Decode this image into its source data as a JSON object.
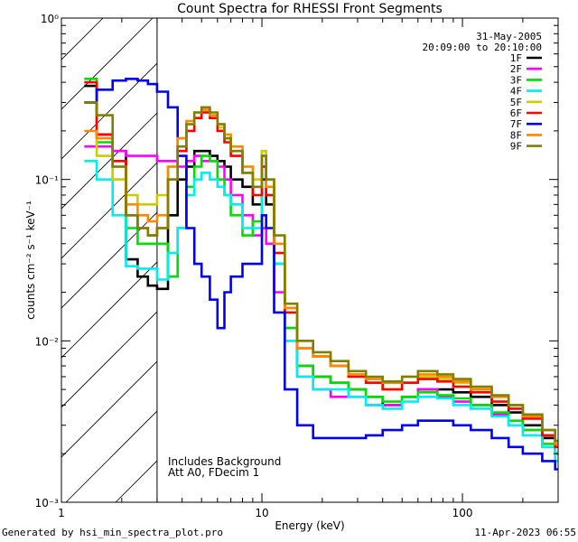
{
  "chart_data": {
    "type": "line",
    "title": "Count Spectra for RHESSI Front Segments",
    "xlabel": "Energy (keV)",
    "ylabel": "counts cm⁻² s⁻¹ keV⁻¹",
    "xscale": "log",
    "yscale": "log",
    "xlim": [
      1,
      300
    ],
    "ylim": [
      0.001,
      1
    ],
    "xticks": [
      {
        "value": 1,
        "label": "1"
      },
      {
        "value": 10,
        "label": "10"
      },
      {
        "value": 100,
        "label": "100"
      }
    ],
    "yticks": [
      {
        "value": 0.001,
        "label": "10⁻³"
      },
      {
        "value": 0.01,
        "label": "10⁻²"
      },
      {
        "value": 0.1,
        "label": "10⁻¹"
      },
      {
        "value": 1,
        "label": "10⁰"
      }
    ],
    "date_label": "31-May-2005",
    "time_label": "20:09:00 to 20:10:00",
    "annotations": [
      "Includes Background",
      "Att A0, FDecim 1"
    ],
    "shaded_region": {
      "x_from": 1,
      "x_to": 3
    },
    "series": [
      {
        "name": "1F",
        "color": "#000000",
        "x": [
          1.3,
          1.5,
          1.8,
          2.1,
          2.4,
          2.7,
          3.0,
          3.4,
          3.8,
          4.2,
          4.6,
          5.0,
          5.5,
          6.0,
          6.5,
          7.0,
          8.0,
          9.0,
          10.0,
          10.5,
          11.5,
          13,
          15,
          18,
          22,
          27,
          33,
          40,
          50,
          60,
          75,
          90,
          110,
          140,
          170,
          200,
          250,
          290
        ],
        "y": [
          0.38,
          0.19,
          0.15,
          0.032,
          0.025,
          0.022,
          0.021,
          0.06,
          0.1,
          0.12,
          0.15,
          0.15,
          0.14,
          0.13,
          0.12,
          0.1,
          0.09,
          0.07,
          0.1,
          0.07,
          0.03,
          0.012,
          0.007,
          0.006,
          0.0055,
          0.005,
          0.0045,
          0.004,
          0.0045,
          0.005,
          0.005,
          0.0048,
          0.0045,
          0.004,
          0.0036,
          0.003,
          0.0025,
          0.002
        ]
      },
      {
        "name": "2F",
        "color": "#ff00ff",
        "x": [
          1.3,
          1.5,
          1.8,
          2.1,
          2.4,
          2.7,
          3.0,
          3.4,
          3.8,
          4.2,
          4.6,
          5.0,
          5.5,
          6.0,
          6.5,
          7.0,
          8.0,
          9.0,
          10.0,
          10.5,
          11.5,
          13,
          15,
          18,
          22,
          27,
          33,
          40,
          50,
          60,
          75,
          90,
          110,
          140,
          170,
          200,
          250,
          290
        ],
        "y": [
          0.16,
          0.16,
          0.15,
          0.14,
          0.14,
          0.14,
          0.13,
          0.13,
          0.12,
          0.13,
          0.14,
          0.13,
          0.13,
          0.12,
          0.1,
          0.08,
          0.06,
          0.045,
          0.05,
          0.04,
          0.02,
          0.01,
          0.006,
          0.005,
          0.0045,
          0.0045,
          0.004,
          0.004,
          0.0045,
          0.005,
          0.0045,
          0.0042,
          0.004,
          0.0035,
          0.003,
          0.0028,
          0.0022,
          0.002
        ]
      },
      {
        "name": "3F",
        "color": "#00dd00",
        "x": [
          1.3,
          1.5,
          1.8,
          2.1,
          2.4,
          2.7,
          3.0,
          3.4,
          3.8,
          4.2,
          4.6,
          5.0,
          5.5,
          6.0,
          6.5,
          7.0,
          8.0,
          9.0,
          10.0,
          10.5,
          11.5,
          13,
          15,
          18,
          22,
          27,
          33,
          40,
          50,
          60,
          75,
          90,
          110,
          140,
          170,
          200,
          250,
          290
        ],
        "y": [
          0.42,
          0.17,
          0.1,
          0.05,
          0.04,
          0.04,
          0.04,
          0.025,
          0.05,
          0.09,
          0.12,
          0.14,
          0.13,
          0.1,
          0.08,
          0.06,
          0.045,
          0.055,
          0.12,
          0.08,
          0.03,
          0.012,
          0.007,
          0.006,
          0.0055,
          0.005,
          0.0045,
          0.0042,
          0.0045,
          0.0048,
          0.0046,
          0.0044,
          0.004,
          0.0036,
          0.0032,
          0.0028,
          0.0023,
          0.002
        ]
      },
      {
        "name": "4F",
        "color": "#00eeee",
        "x": [
          1.3,
          1.5,
          1.8,
          2.1,
          2.4,
          2.7,
          3.0,
          3.4,
          3.8,
          4.2,
          4.6,
          5.0,
          5.5,
          6.0,
          6.5,
          7.0,
          8.0,
          9.0,
          10.0,
          10.5,
          11.5,
          13,
          15,
          18,
          22,
          27,
          33,
          40,
          50,
          60,
          75,
          90,
          110,
          140,
          170,
          200,
          250,
          290
        ],
        "y": [
          0.13,
          0.1,
          0.06,
          0.029,
          0.028,
          0.028,
          0.024,
          0.035,
          0.05,
          0.08,
          0.1,
          0.11,
          0.1,
          0.09,
          0.08,
          0.07,
          0.05,
          0.05,
          0.15,
          0.08,
          0.03,
          0.01,
          0.006,
          0.005,
          0.005,
          0.0045,
          0.004,
          0.0038,
          0.0042,
          0.0045,
          0.0044,
          0.004,
          0.0038,
          0.0034,
          0.003,
          0.0026,
          0.0022,
          0.0018
        ]
      },
      {
        "name": "5F",
        "color": "#cccc00",
        "x": [
          1.3,
          1.5,
          1.8,
          2.1,
          2.4,
          2.7,
          3.0,
          3.4,
          3.8,
          4.2,
          4.6,
          5.0,
          5.5,
          6.0,
          6.5,
          7.0,
          8.0,
          9.0,
          10.0,
          10.5,
          11.5,
          13,
          15,
          18,
          22,
          27,
          33,
          40,
          50,
          60,
          75,
          90,
          110,
          140,
          170,
          200,
          250,
          290
        ],
        "y": [
          0.3,
          0.14,
          0.1,
          0.08,
          0.07,
          0.07,
          0.08,
          0.12,
          0.18,
          0.22,
          0.24,
          0.26,
          0.24,
          0.21,
          0.18,
          0.15,
          0.12,
          0.1,
          0.15,
          0.1,
          0.04,
          0.016,
          0.01,
          0.008,
          0.007,
          0.006,
          0.0055,
          0.005,
          0.0055,
          0.006,
          0.0058,
          0.0055,
          0.005,
          0.0045,
          0.004,
          0.0035,
          0.0028,
          0.0024
        ]
      },
      {
        "name": "6F",
        "color": "#ff0000",
        "x": [
          1.3,
          1.5,
          1.8,
          2.1,
          2.4,
          2.7,
          3.0,
          3.4,
          3.8,
          4.2,
          4.6,
          5.0,
          5.5,
          6.0,
          6.5,
          7.0,
          8.0,
          9.0,
          10.0,
          10.5,
          11.5,
          13,
          15,
          18,
          22,
          27,
          33,
          40,
          50,
          60,
          75,
          90,
          110,
          140,
          170,
          200,
          250,
          290
        ],
        "y": [
          0.4,
          0.19,
          0.13,
          0.06,
          0.05,
          0.045,
          0.05,
          0.1,
          0.15,
          0.2,
          0.24,
          0.26,
          0.24,
          0.2,
          0.17,
          0.14,
          0.11,
          0.08,
          0.12,
          0.08,
          0.035,
          0.015,
          0.009,
          0.008,
          0.007,
          0.006,
          0.0055,
          0.005,
          0.0055,
          0.0058,
          0.0056,
          0.0052,
          0.0048,
          0.0042,
          0.0038,
          0.0033,
          0.0026,
          0.0022
        ]
      },
      {
        "name": "7F",
        "color": "#0000ee",
        "x": [
          1.3,
          1.5,
          1.8,
          2.1,
          2.4,
          2.7,
          3.0,
          3.4,
          3.8,
          4.2,
          4.6,
          5.0,
          5.5,
          6.0,
          6.5,
          7.0,
          8.0,
          9.0,
          10.0,
          10.5,
          11.5,
          13,
          15,
          18,
          22,
          27,
          33,
          40,
          50,
          60,
          75,
          90,
          110,
          140,
          170,
          200,
          250,
          290
        ],
        "y": [
          0.3,
          0.36,
          0.41,
          0.42,
          0.41,
          0.39,
          0.35,
          0.28,
          0.14,
          0.05,
          0.03,
          0.025,
          0.018,
          0.012,
          0.02,
          0.025,
          0.03,
          0.03,
          0.06,
          0.05,
          0.015,
          0.005,
          0.003,
          0.0025,
          0.0025,
          0.0025,
          0.0026,
          0.0028,
          0.003,
          0.0032,
          0.0032,
          0.003,
          0.0028,
          0.0025,
          0.0022,
          0.002,
          0.0018,
          0.0016
        ]
      },
      {
        "name": "8F",
        "color": "#ff8800",
        "x": [
          1.3,
          1.5,
          1.8,
          2.1,
          2.4,
          2.7,
          3.0,
          3.4,
          3.8,
          4.2,
          4.6,
          5.0,
          5.5,
          6.0,
          6.5,
          7.0,
          8.0,
          9.0,
          10.0,
          10.5,
          11.5,
          13,
          15,
          18,
          22,
          27,
          33,
          40,
          50,
          60,
          75,
          90,
          110,
          140,
          170,
          200,
          250,
          290
        ],
        "y": [
          0.2,
          0.18,
          0.12,
          0.07,
          0.06,
          0.055,
          0.06,
          0.12,
          0.18,
          0.23,
          0.26,
          0.27,
          0.25,
          0.22,
          0.19,
          0.16,
          0.12,
          0.09,
          0.14,
          0.09,
          0.04,
          0.016,
          0.009,
          0.008,
          0.007,
          0.0062,
          0.0058,
          0.0055,
          0.006,
          0.0062,
          0.006,
          0.0056,
          0.005,
          0.0045,
          0.004,
          0.0034,
          0.0028,
          0.0023
        ]
      },
      {
        "name": "9F",
        "color": "#808000",
        "x": [
          1.3,
          1.5,
          1.8,
          2.1,
          2.4,
          2.7,
          3.0,
          3.4,
          3.8,
          4.2,
          4.6,
          5.0,
          5.5,
          6.0,
          6.5,
          7.0,
          8.0,
          9.0,
          10.0,
          10.5,
          11.5,
          13,
          15,
          18,
          22,
          27,
          33,
          40,
          50,
          60,
          75,
          90,
          110,
          140,
          170,
          200,
          250,
          290
        ],
        "y": [
          0.3,
          0.25,
          0.12,
          0.06,
          0.05,
          0.045,
          0.05,
          0.1,
          0.16,
          0.22,
          0.26,
          0.28,
          0.26,
          0.22,
          0.18,
          0.15,
          0.11,
          0.09,
          0.14,
          0.1,
          0.045,
          0.017,
          0.01,
          0.0085,
          0.0075,
          0.0065,
          0.006,
          0.0056,
          0.006,
          0.0065,
          0.0062,
          0.0058,
          0.0052,
          0.0046,
          0.004,
          0.0035,
          0.0028,
          0.0024
        ]
      }
    ]
  },
  "footer": {
    "generated_by": "Generated by hsi_min_spectra_plot.pro",
    "timestamp": "11-Apr-2023 06:55"
  }
}
